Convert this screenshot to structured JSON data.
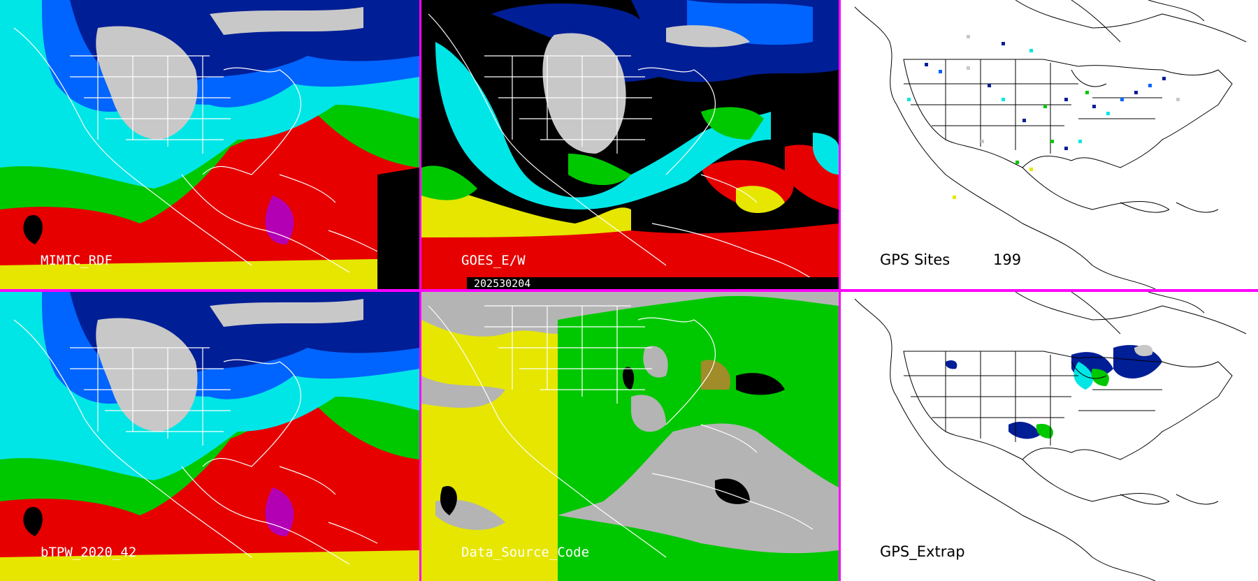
{
  "panels": {
    "mimic": {
      "label": "MIMIC_RDF"
    },
    "goes": {
      "label": "GOES_E/W",
      "date": "202530204"
    },
    "gps_sites": {
      "label": "GPS Sites",
      "count": "199"
    },
    "btpw": {
      "label": "bTPW_2020_42"
    },
    "dsc": {
      "label": "Data_Source_Code"
    },
    "gps_extrap": {
      "label": "GPS_Extrap"
    }
  },
  "colors": {
    "separator": "#ff00ff",
    "pw_scale": [
      "#c8c8c8",
      "#001e96",
      "#0064ff",
      "#00e6e6",
      "#00c800",
      "#e6e600",
      "#e60000",
      "#b400b4"
    ]
  }
}
